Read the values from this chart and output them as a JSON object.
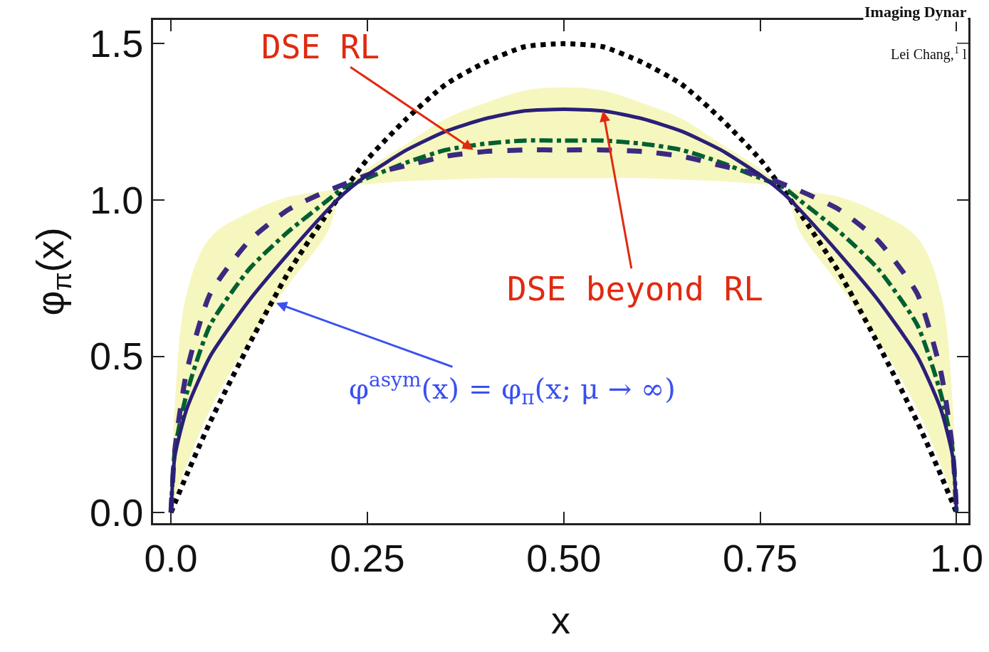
{
  "chart_data": {
    "type": "line",
    "xlabel": "x",
    "ylabel": "φ$_{π}$(x)",
    "x": [
      0,
      0.005,
      0.02,
      0.05,
      0.1,
      0.15,
      0.2,
      0.22,
      0.25,
      0.3,
      0.35,
      0.4,
      0.45,
      0.5,
      0.55,
      0.6,
      0.65,
      0.7,
      0.75,
      0.78,
      0.8,
      0.85,
      0.9,
      0.95,
      0.98,
      0.995,
      1
    ],
    "series": [
      {
        "color": "#000000",
        "line_style": "dotted",
        "values": [
          0,
          0.03,
          0.12,
          0.29,
          0.54,
          0.77,
          0.96,
          1.03,
          1.13,
          1.26,
          1.37,
          1.44,
          1.49,
          1.5,
          1.49,
          1.44,
          1.37,
          1.26,
          1.13,
          1.03,
          0.96,
          0.77,
          0.54,
          0.29,
          0.12,
          0.03,
          0
        ]
      },
      {
        "color": "#006030",
        "line_style": "dashdot",
        "values": [
          0,
          0.2,
          0.38,
          0.6,
          0.78,
          0.9,
          1.0,
          1.04,
          1.07,
          1.12,
          1.16,
          1.18,
          1.19,
          1.19,
          1.19,
          1.18,
          1.16,
          1.12,
          1.07,
          1.04,
          1.0,
          0.9,
          0.78,
          0.6,
          0.38,
          0.2,
          0
        ],
        "lower": [
          0,
          0.05,
          0.15,
          0.33,
          0.55,
          0.73,
          0.9,
          1.04,
          1.05,
          1.06,
          1.065,
          1.07,
          1.07,
          1.07,
          1.07,
          1.07,
          1.065,
          1.06,
          1.05,
          1.04,
          0.9,
          0.73,
          0.55,
          0.33,
          0.15,
          0.05,
          0
        ],
        "upper": [
          0,
          0.35,
          0.7,
          0.88,
          0.96,
          1.01,
          1.03,
          1.04,
          1.1,
          1.18,
          1.26,
          1.31,
          1.35,
          1.36,
          1.35,
          1.31,
          1.26,
          1.18,
          1.1,
          1.04,
          1.03,
          1.01,
          0.96,
          0.88,
          0.7,
          0.35,
          0
        ]
      },
      {
        "color": "#3a2a80",
        "line_style": "dashed",
        "values": [
          0,
          0.2,
          0.45,
          0.7,
          0.87,
          0.97,
          1.03,
          1.05,
          1.08,
          1.11,
          1.14,
          1.155,
          1.16,
          1.16,
          1.16,
          1.155,
          1.14,
          1.11,
          1.08,
          1.05,
          1.03,
          0.97,
          0.87,
          0.7,
          0.45,
          0.2,
          0
        ]
      },
      {
        "color": "#2a1f78",
        "line_style": "solid",
        "values": [
          0,
          0.18,
          0.33,
          0.5,
          0.68,
          0.83,
          0.97,
          1.02,
          1.08,
          1.16,
          1.22,
          1.26,
          1.285,
          1.29,
          1.285,
          1.26,
          1.22,
          1.16,
          1.08,
          1.02,
          0.97,
          0.83,
          0.68,
          0.5,
          0.33,
          0.18,
          0
        ]
      }
    ],
    "annotations": [
      {
        "text": "DSE RL",
        "x": 0.385,
        "y": 1.16
      },
      {
        "text": "DSE beyond RL",
        "x": 0.55,
        "y": 1.285
      },
      {
        "text": "φ$^{asym}$(x) = φ$_{π}$(x; μ → ∞)",
        "x": 0.134,
        "y": 0.67
      },
      "Imaging Dynar",
      "Lei Chang,$^{1}$ l"
    ],
    "xlim": [
      -0.0227,
      1.015
    ],
    "ylim": [
      -0.034,
      1.576
    ],
    "xticks": [
      {
        "value": 0,
        "label": "0.0"
      },
      0.25,
      {
        "value": 0.5,
        "label": "0.50"
      },
      0.75,
      {
        "value": 1,
        "label": "1.0"
      }
    ],
    "yticks": [
      {
        "value": 0,
        "label": "0.0"
      },
      0.5,
      {
        "value": 1,
        "label": "1.0"
      },
      1.5
    ],
    "grid": false,
    "marker": "none"
  }
}
